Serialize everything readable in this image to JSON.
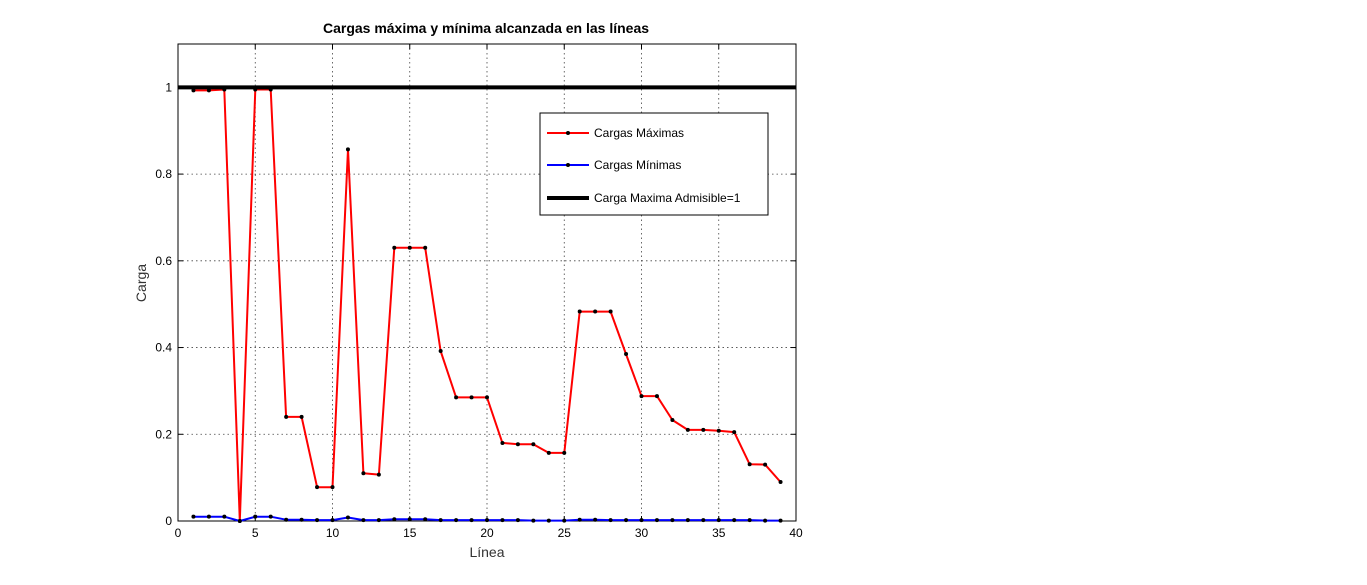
{
  "chart_data": {
    "type": "line",
    "title": "Cargas máxima y mínima alcanzada en las líneas",
    "xlabel": "Línea",
    "ylabel": "Carga",
    "xlim": [
      0,
      40
    ],
    "ylim": [
      0,
      1.1
    ],
    "xticks": [
      0,
      5,
      10,
      15,
      20,
      25,
      30,
      35,
      40
    ],
    "yticks": [
      0,
      0.2,
      0.4,
      0.6,
      0.8,
      1
    ],
    "grid": true,
    "legend_position": "top-right",
    "x": [
      1,
      2,
      3,
      4,
      5,
      6,
      7,
      8,
      9,
      10,
      11,
      12,
      13,
      14,
      15,
      16,
      17,
      18,
      19,
      20,
      21,
      22,
      23,
      24,
      25,
      26,
      27,
      28,
      29,
      30,
      31,
      32,
      33,
      34,
      35,
      36,
      37,
      38,
      39
    ],
    "series": [
      {
        "name": "Cargas Máximas",
        "color": "#ff0000",
        "marker_color": "#000000",
        "values": [
          0.993,
          0.993,
          0.995,
          0.0,
          0.995,
          0.995,
          0.24,
          0.24,
          0.078,
          0.078,
          0.857,
          0.11,
          0.107,
          0.63,
          0.63,
          0.63,
          0.392,
          0.285,
          0.285,
          0.285,
          0.18,
          0.177,
          0.177,
          0.157,
          0.157,
          0.483,
          0.483,
          0.483,
          0.385,
          0.288,
          0.288,
          0.233,
          0.21,
          0.21,
          0.208,
          0.205,
          0.131,
          0.13,
          0.09
        ]
      },
      {
        "name": "Cargas  Mínimas",
        "color": "#0000ff",
        "marker_color": "#000000",
        "values": [
          0.01,
          0.01,
          0.01,
          0.0,
          0.01,
          0.01,
          0.003,
          0.003,
          0.002,
          0.002,
          0.008,
          0.002,
          0.002,
          0.004,
          0.004,
          0.004,
          0.002,
          0.002,
          0.002,
          0.002,
          0.002,
          0.002,
          0.001,
          0.001,
          0.001,
          0.003,
          0.003,
          0.002,
          0.002,
          0.002,
          0.002,
          0.002,
          0.002,
          0.002,
          0.002,
          0.002,
          0.002,
          0.001,
          0.001
        ]
      },
      {
        "name": "Carga Maxima Admisible=1",
        "color": "#000000",
        "constant": 1
      }
    ]
  }
}
